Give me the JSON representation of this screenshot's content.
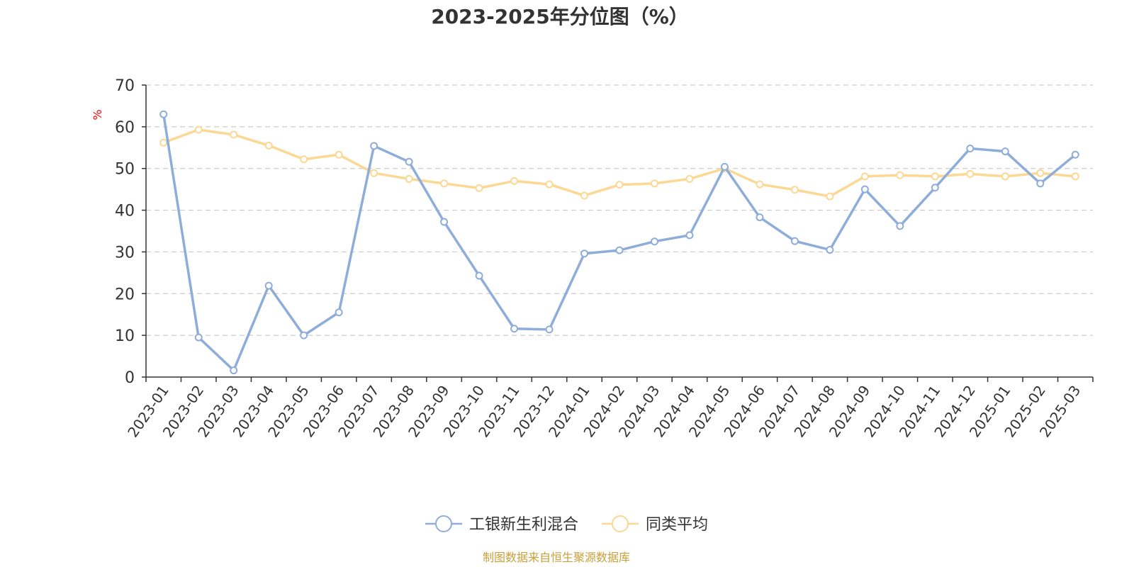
{
  "chart_data": {
    "type": "line",
    "title": "2023-2025年分位图（%）",
    "ylabel": "%",
    "xlabel": "",
    "ylim": [
      0,
      70
    ],
    "yticks": [
      0,
      10,
      20,
      30,
      40,
      50,
      60,
      70
    ],
    "grid": true,
    "legend_position": "bottom-center",
    "categories": [
      "2023-01",
      "2023-02",
      "2023-03",
      "2023-04",
      "2023-05",
      "2023-06",
      "2023-07",
      "2023-08",
      "2023-09",
      "2023-10",
      "2023-11",
      "2023-12",
      "2024-01",
      "2024-02",
      "2024-03",
      "2024-04",
      "2024-05",
      "2024-06",
      "2024-07",
      "2024-08",
      "2024-09",
      "2024-10",
      "2024-11",
      "2024-12",
      "2025-01",
      "2025-02",
      "2025-03"
    ],
    "series": [
      {
        "name": "工银新生利混合",
        "color": "#8eadd9",
        "values": [
          63.0,
          9.5,
          1.6,
          21.9,
          10.0,
          15.5,
          55.4,
          51.6,
          37.2,
          24.3,
          11.6,
          11.4,
          29.6,
          30.4,
          32.5,
          34.0,
          50.4,
          38.3,
          32.6,
          30.5,
          45.0,
          36.2,
          45.4,
          54.8,
          54.1,
          46.4,
          53.3
        ]
      },
      {
        "name": "同类平均",
        "color": "#fbd894",
        "values": [
          56.2,
          59.3,
          58.1,
          55.5,
          52.2,
          53.3,
          48.9,
          47.5,
          46.4,
          45.3,
          47.0,
          46.2,
          43.5,
          46.1,
          46.4,
          47.5,
          50.0,
          46.2,
          44.9,
          43.3,
          48.1,
          48.4,
          48.1,
          48.7,
          48.1,
          48.9,
          48.1
        ]
      }
    ]
  },
  "source_text": "制图数据来自恒生聚源数据库",
  "colors": {
    "axis": "#333333",
    "grid": "#cccccc",
    "unit_label": "#ff0000",
    "source": "#c8a03a"
  }
}
